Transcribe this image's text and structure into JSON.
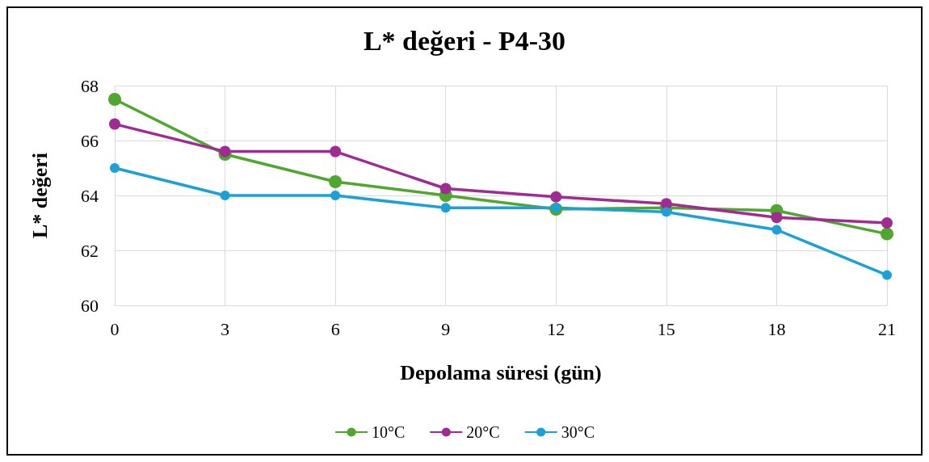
{
  "chart_data": {
    "type": "line",
    "title": "L* değeri - P4-30",
    "xlabel": "Depolama süresi (gün)",
    "ylabel": "L* değeri",
    "x": [
      0,
      3,
      6,
      9,
      12,
      15,
      18,
      21
    ],
    "xlim": [
      0,
      21
    ],
    "xticks": [
      0,
      3,
      6,
      9,
      12,
      15,
      18,
      21
    ],
    "ylim": [
      60,
      68
    ],
    "yticks": [
      60,
      62,
      64,
      66,
      68
    ],
    "grid": true,
    "legend": "bottom",
    "marker": "circle",
    "line_style": "solid",
    "series": [
      {
        "name": "10°C",
        "color": "#4ea72e",
        "values": [
          67.5,
          65.5,
          64.5,
          64.0,
          63.5,
          63.55,
          63.45,
          62.6
        ]
      },
      {
        "name": "20°C",
        "color": "#a02b93",
        "values": [
          66.6,
          65.6,
          65.6,
          64.25,
          63.95,
          63.7,
          63.2,
          63.0
        ]
      },
      {
        "name": "30°C",
        "color": "#1ba1d8",
        "values": [
          65.0,
          64.0,
          64.0,
          63.55,
          63.55,
          63.4,
          62.75,
          61.1
        ]
      }
    ]
  }
}
